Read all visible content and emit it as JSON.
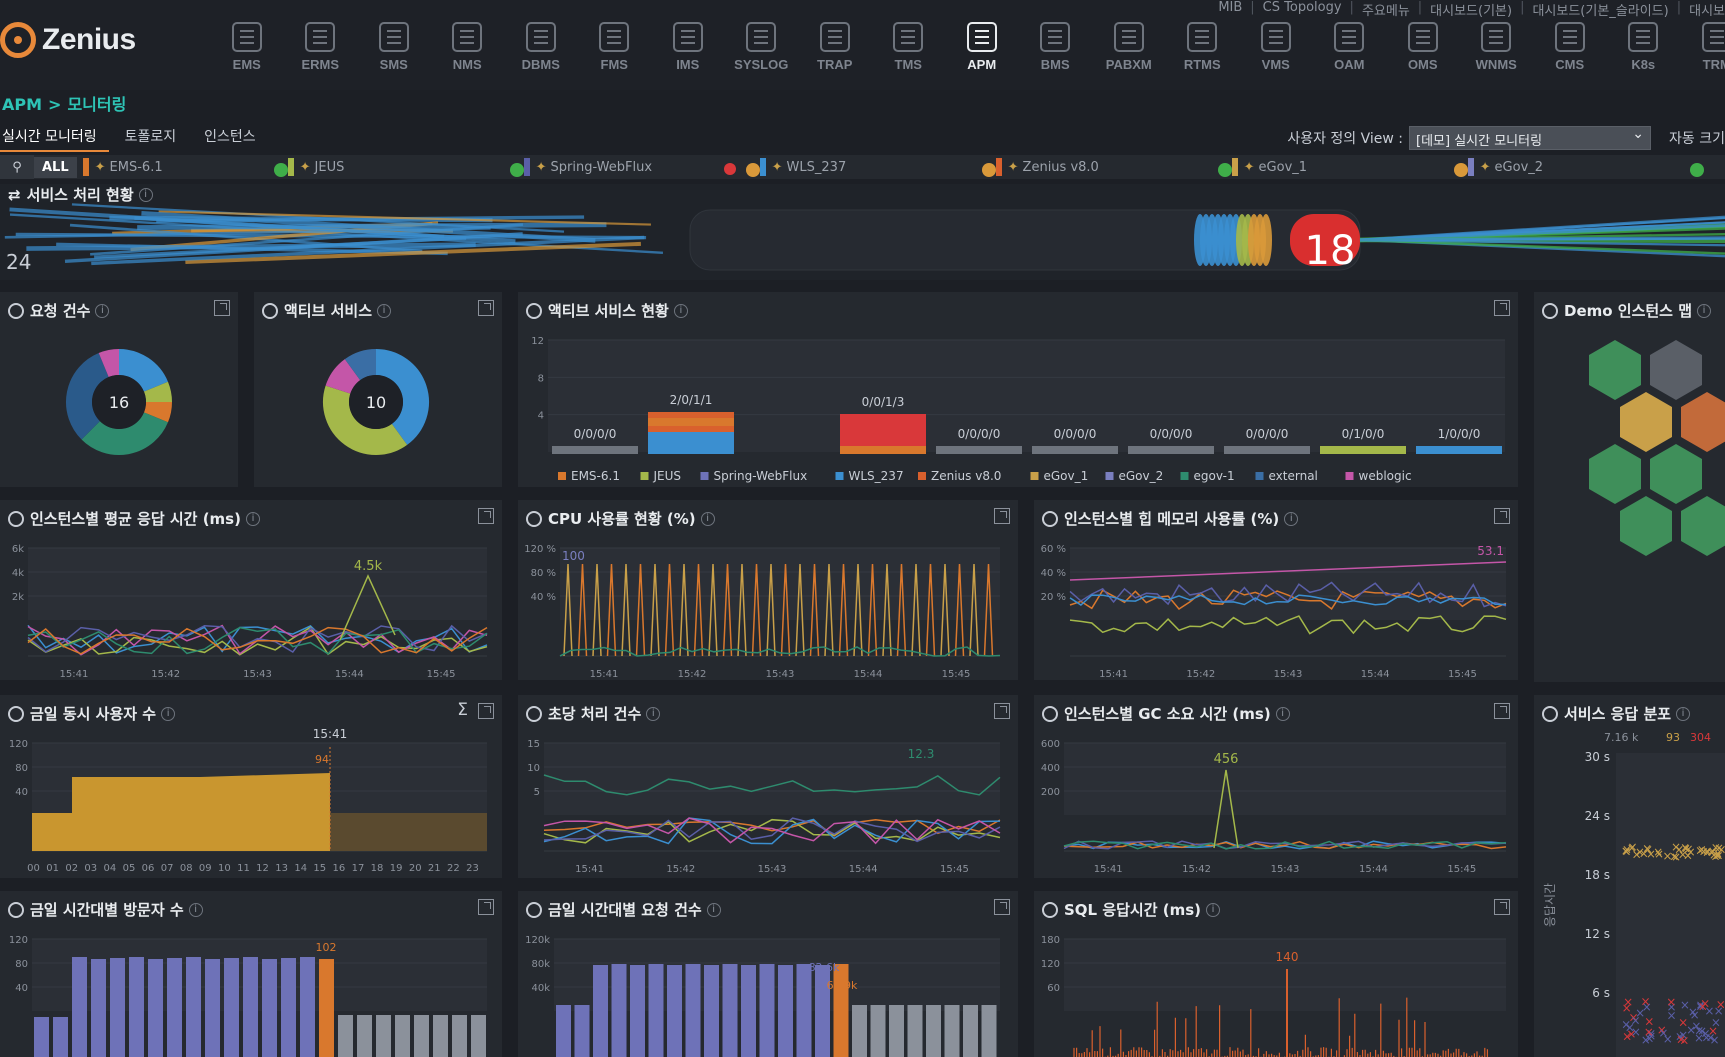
{
  "toplinks": [
    "MIB",
    "CS Topology",
    "주요메뉴",
    "대시보드(기본)",
    "대시보드(기본_슬라이드)",
    "대시보"
  ],
  "brand": {
    "name": "Zenius"
  },
  "modules": [
    {
      "label": "EMS"
    },
    {
      "label": "ERMS"
    },
    {
      "label": "SMS"
    },
    {
      "label": "NMS"
    },
    {
      "label": "DBMS"
    },
    {
      "label": "FMS"
    },
    {
      "label": "IMS"
    },
    {
      "label": "SYSLOG"
    },
    {
      "label": "TRAP"
    },
    {
      "label": "TMS"
    },
    {
      "label": "APM"
    },
    {
      "label": "BMS"
    },
    {
      "label": "PABXM"
    },
    {
      "label": "RTMS"
    },
    {
      "label": "VMS"
    },
    {
      "label": "OAM"
    },
    {
      "label": "OMS"
    },
    {
      "label": "WNMS"
    },
    {
      "label": "CMS"
    },
    {
      "label": "K8s"
    },
    {
      "label": "TRM"
    }
  ],
  "breadcrumb": {
    "root": "APM",
    "sep": ">",
    "current": "모니터링"
  },
  "subtabs": [
    "실시간 모니터링",
    "토폴로지",
    "인스턴스"
  ],
  "view": {
    "label": "사용자 정의 View :",
    "selected": "[데모] 실시간 모니터링",
    "auto_size": "자동 크기"
  },
  "filter": {
    "all": "ALL",
    "instances": [
      {
        "name": "EMS-6.1",
        "bar": "#d9782d",
        "status": "#3fae49"
      },
      {
        "name": "JEUS",
        "bar": "#a4b84a",
        "status": "#3fae49"
      },
      {
        "name": "Spring-WebFlux",
        "bar": "#5a5fa8",
        "status": "#d9993a",
        "alert": true
      },
      {
        "name": "WLS_237",
        "bar": "#3b8fd0",
        "status": "#d9993a"
      },
      {
        "name": "Zenius v8.0",
        "bar": "#d9602d",
        "status": "#3fae49"
      },
      {
        "name": "eGov_1",
        "bar": "#c9a049",
        "status": "#d9993a"
      },
      {
        "name": "eGov_2",
        "bar": "#7a7fc0",
        "status": "#3fae49"
      }
    ]
  },
  "flow": {
    "title": "서비스 처리 현황",
    "left_count": "24",
    "right_count": "18"
  },
  "panels": {
    "requests": {
      "title": "요청 건수",
      "center": "16"
    },
    "active": {
      "title": "액티브 서비스",
      "center": "10"
    },
    "active_status": {
      "title": "액티브 서비스 현황",
      "yticks": [
        "12",
        "8",
        "4"
      ],
      "bar_labels": [
        "0/0/0/0",
        "2/0/1/1",
        "",
        "0/0/1/3",
        "0/0/0/0",
        "0/0/0/0",
        "0/0/0/0",
        "0/0/0/0",
        "0/1/0/0",
        "1/0/0/0"
      ],
      "legend": [
        {
          "name": "EMS-6.1",
          "color": "#d9782d"
        },
        {
          "name": "JEUS",
          "color": "#a4b84a"
        },
        {
          "name": "Spring-WebFlux",
          "color": "#6e72b8"
        },
        {
          "name": "WLS_237",
          "color": "#3b8fd0"
        },
        {
          "name": "Zenius v8.0",
          "color": "#d9602d"
        },
        {
          "name": "eGov_1",
          "color": "#c9a049"
        },
        {
          "name": "eGov_2",
          "color": "#7a7fc0"
        },
        {
          "name": "egov-1",
          "color": "#2e8b6e"
        },
        {
          "name": "external",
          "color": "#3a6ea5"
        },
        {
          "name": "weblogic",
          "color": "#c456a8"
        }
      ]
    },
    "instance_map": {
      "title": "Demo 인스턴스 맵"
    },
    "avg_response": {
      "title": "인스턴스별 평균 응답 시간 (ms)",
      "yticks": [
        "6k",
        "4k",
        "2k"
      ],
      "xticks": [
        "15:41",
        "15:42",
        "15:43",
        "15:44",
        "15:45"
      ],
      "peak": "4.5k"
    },
    "cpu": {
      "title": "CPU 사용률 현황 (%)",
      "yticks": [
        "120 %",
        "80 %",
        "40 %"
      ],
      "xticks": [
        "15:41",
        "15:42",
        "15:43",
        "15:44",
        "15:45"
      ],
      "peak": "100"
    },
    "heap": {
      "title": "인스턴스별 힙 메모리 사용률 (%)",
      "yticks": [
        "60 %",
        "40 %",
        "20 %"
      ],
      "xticks": [
        "15:41",
        "15:42",
        "15:43",
        "15:44",
        "15:45"
      ],
      "peak": "53.1"
    },
    "concurrent": {
      "title": "금일 동시 사용자 수",
      "yticks": [
        "120",
        "80",
        "40"
      ],
      "xticks": [
        "00",
        "01",
        "02",
        "03",
        "04",
        "05",
        "06",
        "07",
        "08",
        "09",
        "10",
        "11",
        "12",
        "13",
        "14",
        "15",
        "16",
        "17",
        "18",
        "19",
        "20",
        "21",
        "22",
        "23"
      ],
      "time": "15:41",
      "value": "94"
    },
    "tps": {
      "title": "초당 처리 건수",
      "yticks": [
        "15",
        "10",
        "5"
      ],
      "xticks": [
        "15:41",
        "15:42",
        "15:43",
        "15:44",
        "15:45"
      ],
      "peak": "12.3"
    },
    "gc": {
      "title": "인스턴스별 GC 소요 시간 (ms)",
      "yticks": [
        "600",
        "400",
        "200"
      ],
      "xticks": [
        "15:41",
        "15:42",
        "15:43",
        "15:44",
        "15:45"
      ],
      "peak": "456"
    },
    "resp_dist": {
      "title": "서비스 응답 분포",
      "summary_total": "7.16 k",
      "summary_a": "93",
      "summary_b": "304",
      "yticks": [
        "30 s",
        "24 s",
        "18 s",
        "12 s",
        "6 s"
      ],
      "ylabel": "응답시간"
    },
    "visitors": {
      "title": "금일 시간대별 방문자 수",
      "yticks": [
        "120",
        "80",
        "40"
      ],
      "value": "102"
    },
    "hourly_requests": {
      "title": "금일 시간대별 요청 건수",
      "yticks": [
        "120k",
        "80k",
        "40k"
      ],
      "v1": "82.6k",
      "v2": "62.9k"
    },
    "sql": {
      "title": "SQL 응답시간 (ms)",
      "yticks": [
        "180",
        "120",
        "60"
      ],
      "peak": "140"
    }
  }
}
